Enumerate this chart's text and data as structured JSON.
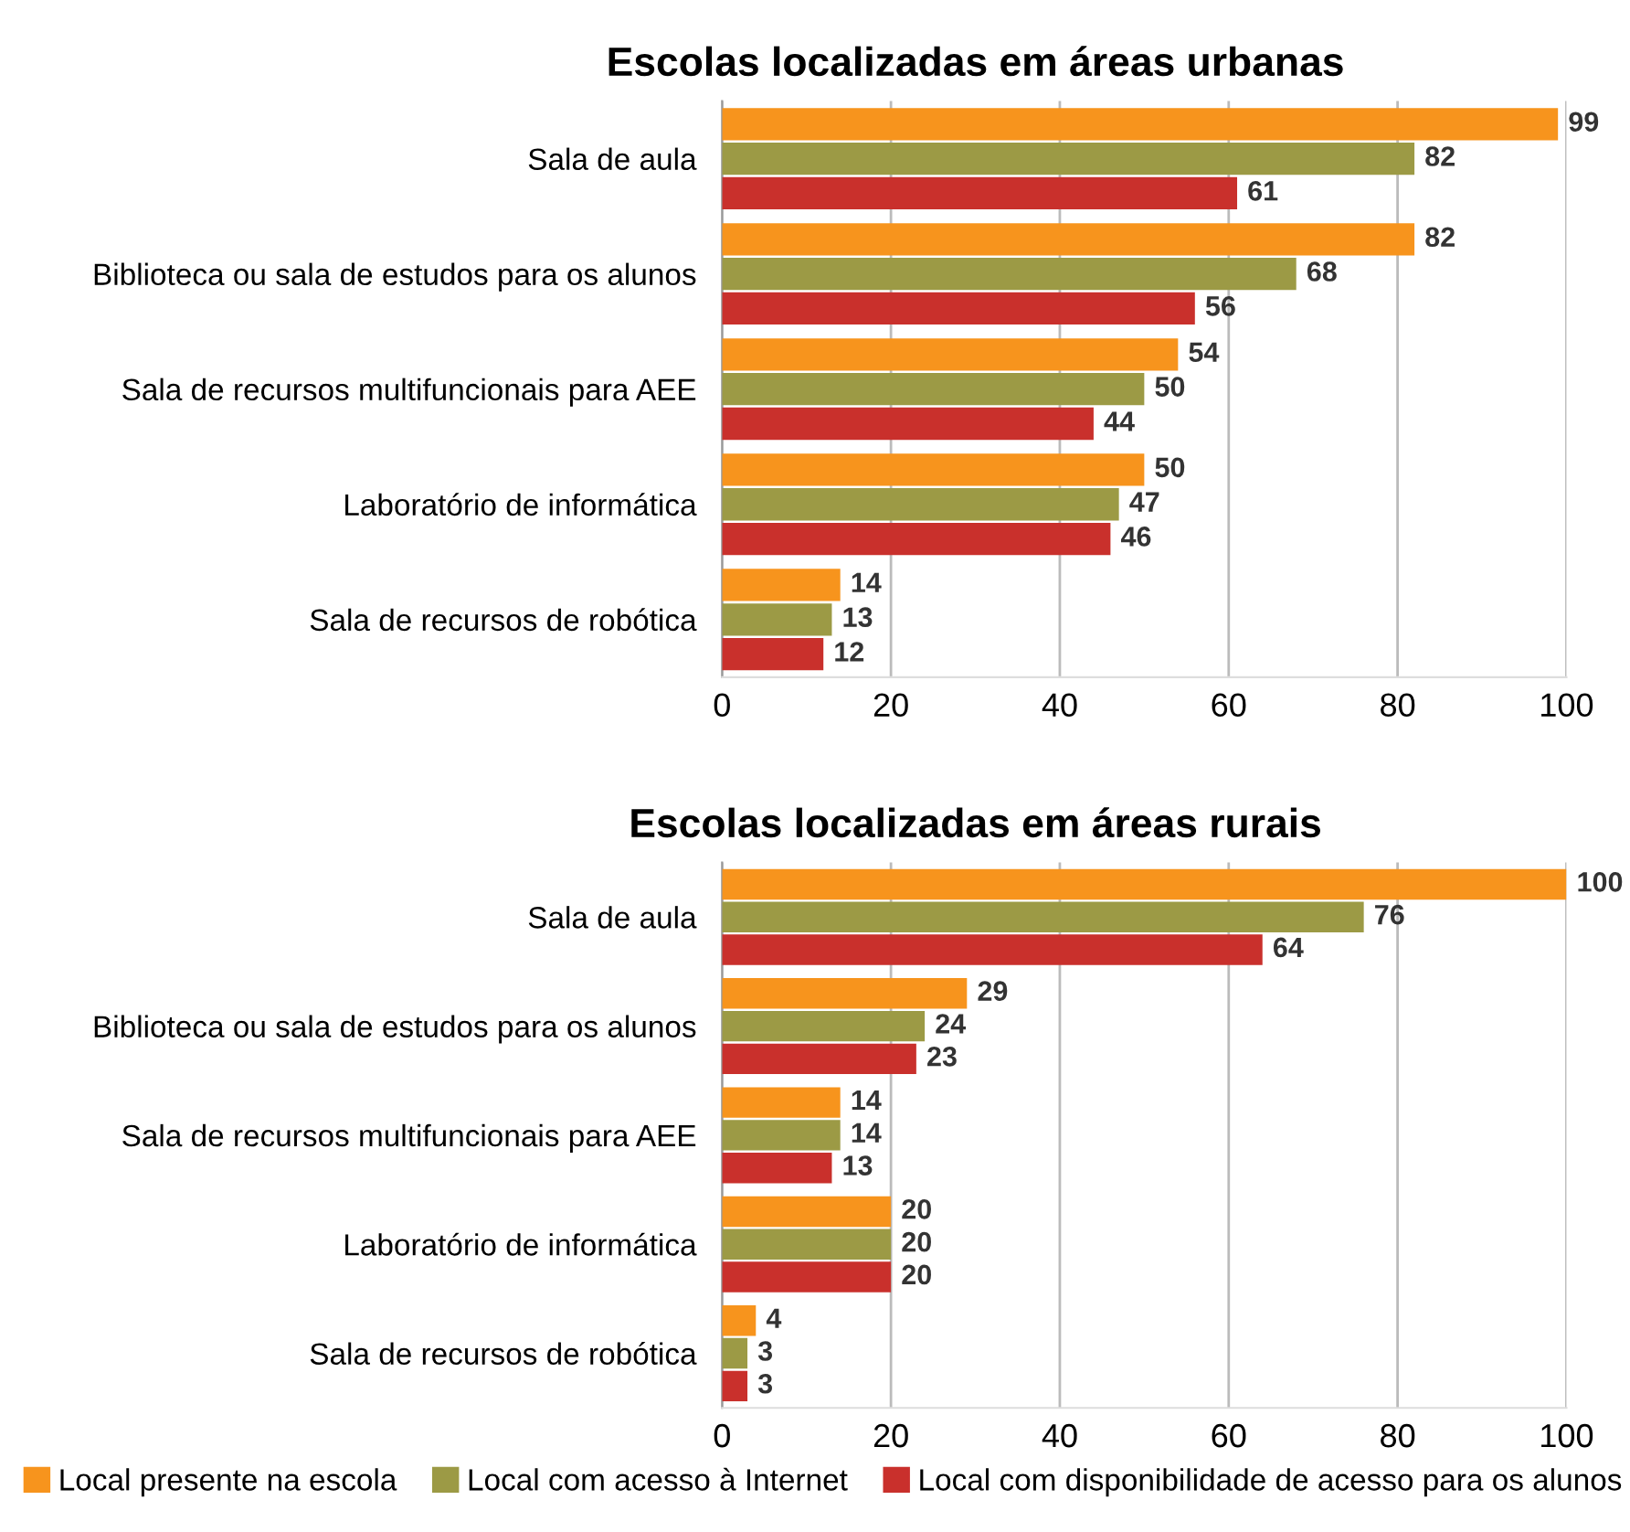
{
  "chart_data": [
    {
      "type": "bar",
      "orientation": "horizontal",
      "title": "Escolas localizadas em áreas urbanas",
      "categories": [
        "Sala de aula",
        "Biblioteca ou sala de estudos para os alunos",
        "Sala de recursos multifuncionais para AEE",
        "Laboratório de informática",
        "Sala de recursos de robótica"
      ],
      "series": [
        {
          "color": "#f7941d",
          "values": [
            99,
            82,
            54,
            50,
            14
          ]
        },
        {
          "color": "#9c9a45",
          "values": [
            82,
            68,
            50,
            47,
            13
          ]
        },
        {
          "color": "#c9302c",
          "values": [
            61,
            56,
            44,
            46,
            12
          ]
        }
      ],
      "xlim": [
        0,
        100
      ],
      "xticks": [
        0,
        20,
        40,
        60,
        80,
        100
      ],
      "grid": "x",
      "data_labels": true,
      "legend": false
    },
    {
      "type": "bar",
      "orientation": "horizontal",
      "title": "Escolas localizadas em áreas rurais",
      "categories": [
        "Sala de aula",
        "Biblioteca ou sala de estudos para os alunos",
        "Sala de recursos multifuncionais para AEE",
        "Laboratório de informática",
        "Sala de recursos de robótica"
      ],
      "series": [
        {
          "name": "Local presente na escola",
          "color": "#f7941d",
          "values": [
            100,
            29,
            14,
            20,
            4
          ]
        },
        {
          "name": "Local com acesso à Internet",
          "color": "#9c9a45",
          "values": [
            76,
            24,
            14,
            20,
            3
          ]
        },
        {
          "name": "Local com disponibilidade de acesso para os alunos",
          "color": "#c9302c",
          "values": [
            64,
            23,
            13,
            20,
            3
          ]
        }
      ],
      "xlim": [
        0,
        100
      ],
      "xticks": [
        0,
        20,
        40,
        60,
        80,
        100
      ],
      "grid": "x",
      "data_labels": true,
      "legend": "bottom"
    }
  ]
}
